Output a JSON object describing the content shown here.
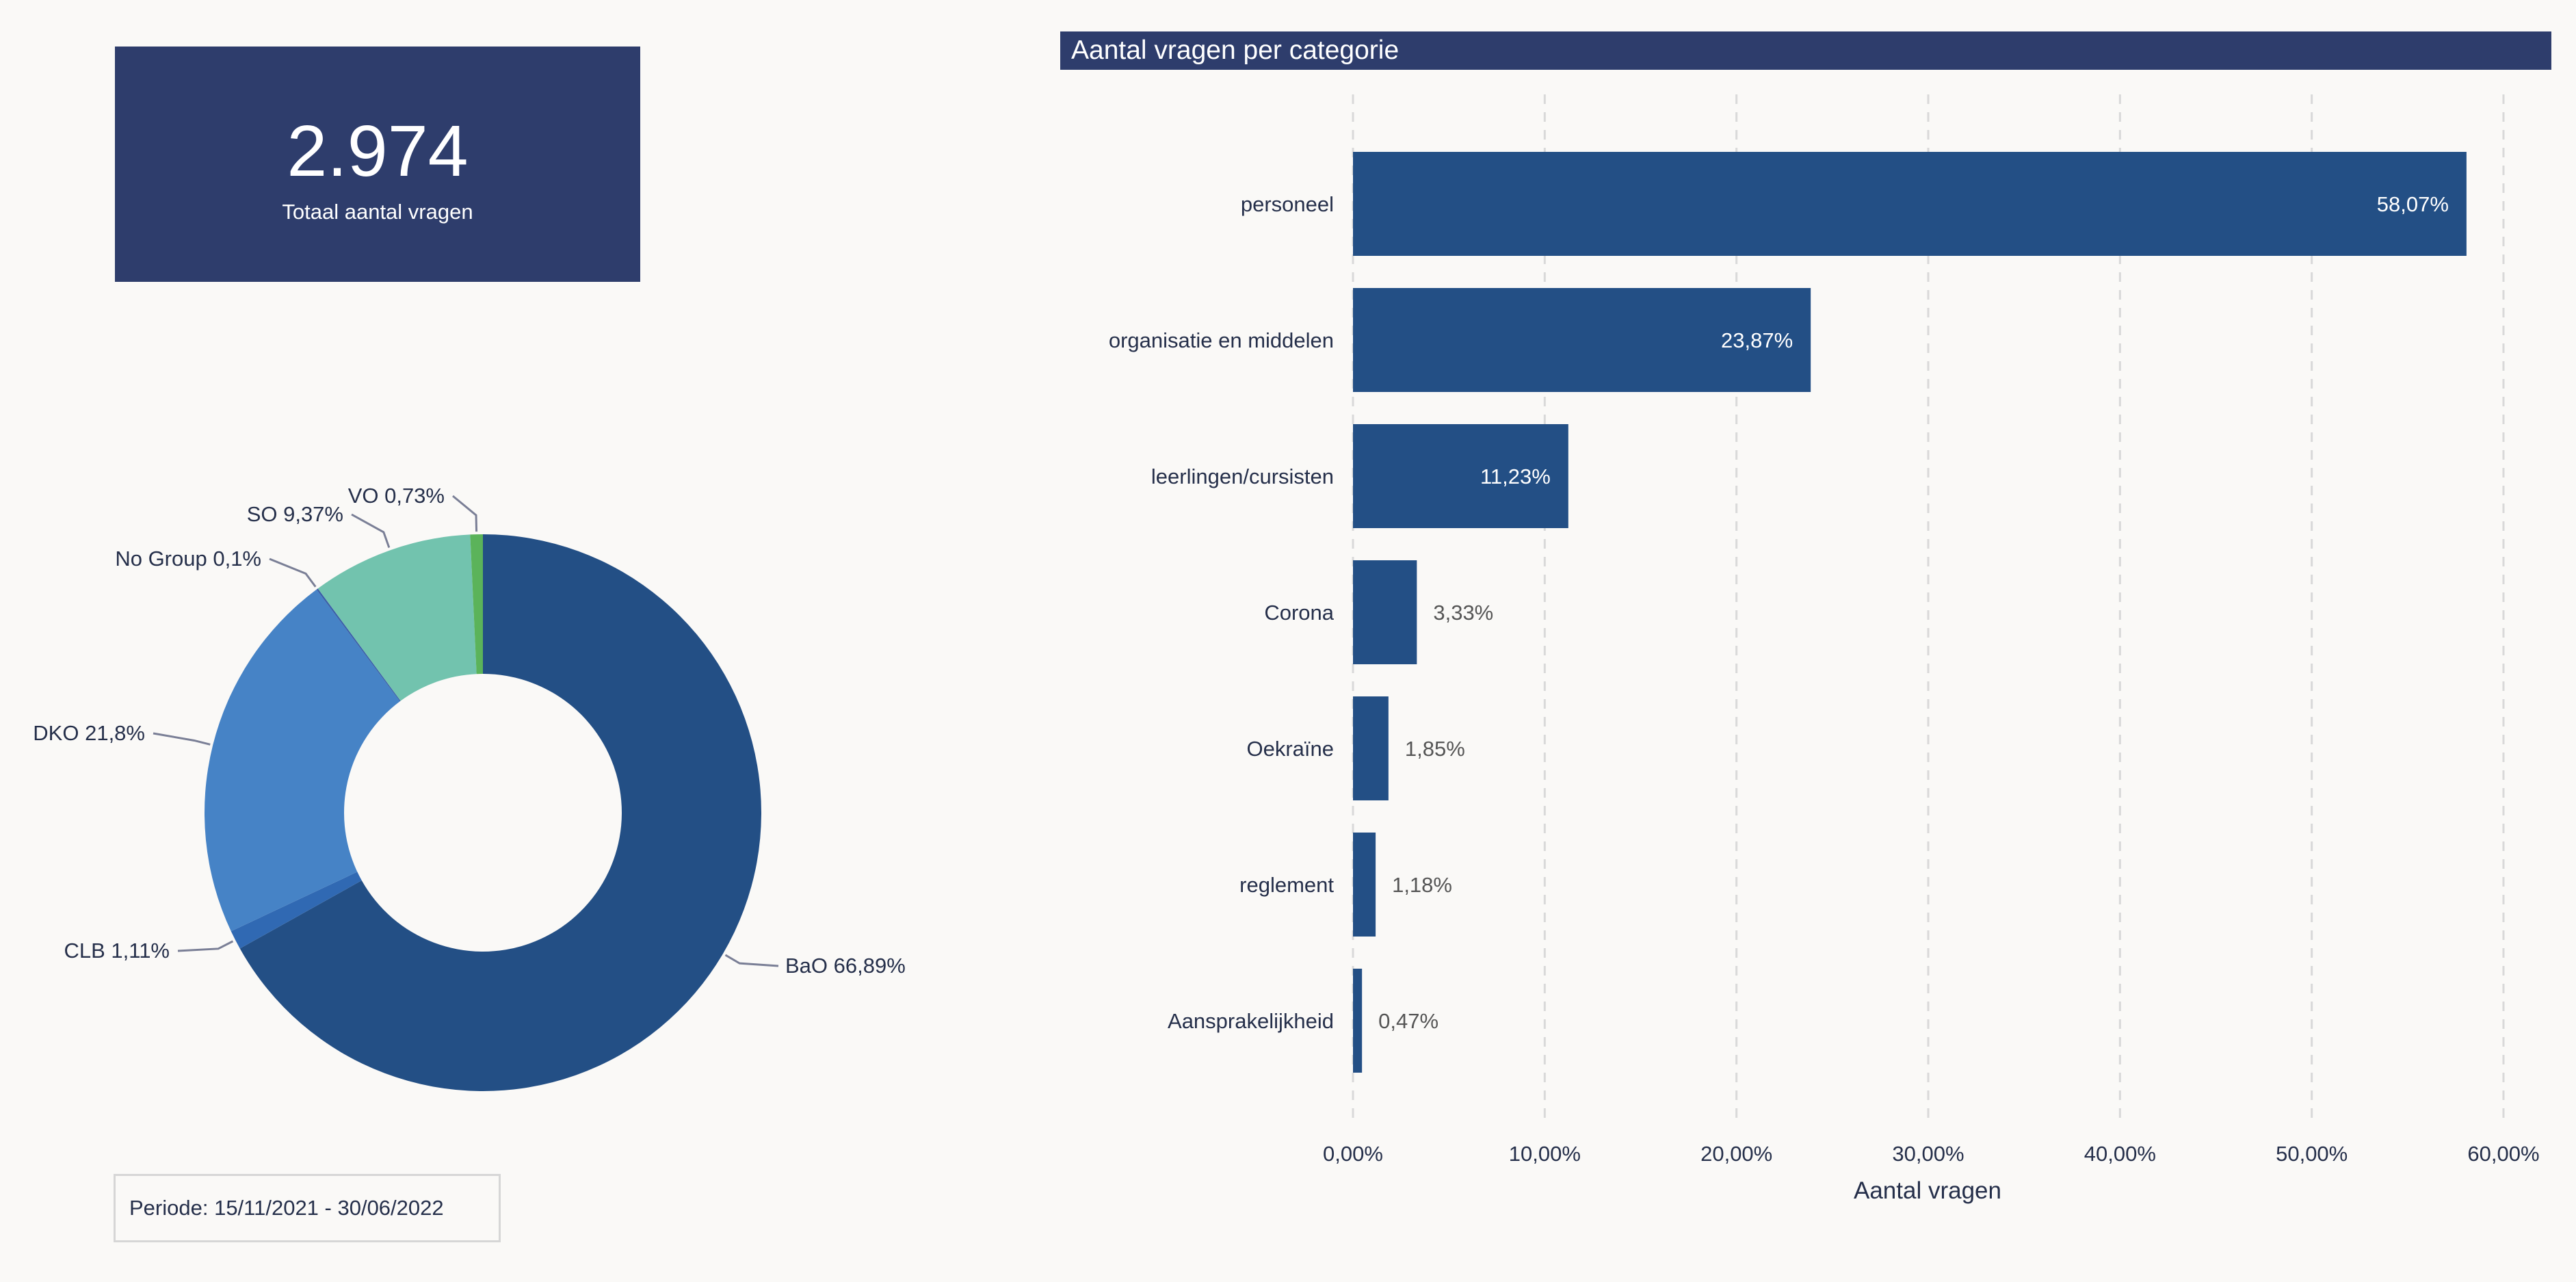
{
  "kpi": {
    "value": "2.974",
    "label": "Totaal aantal vragen"
  },
  "period": {
    "label": "Periode: 15/11/2021 - 30/06/2022"
  },
  "colors": {
    "header_bg": "#2e3d6c",
    "bar": "#234f85",
    "donut": [
      "#234f85",
      "#3069b3",
      "#4683c6",
      "#3a5fa8",
      "#72c3ae",
      "#5bb35a"
    ]
  },
  "chart_data": [
    {
      "type": "pie",
      "title": "",
      "categories": [
        "BaO",
        "CLB",
        "DKO",
        "No Group",
        "SO",
        "VO"
      ],
      "values": [
        66.89,
        1.11,
        21.8,
        0.1,
        9.37,
        0.73
      ],
      "labels": [
        "BaO 66,89%",
        "CLB 1,11%",
        "DKO 21,8%",
        "No Group 0,1%",
        "SO 9,37%",
        "VO 0,73%"
      ],
      "donut": true
    },
    {
      "type": "bar",
      "orientation": "horizontal",
      "title": "Aantal vragen per categorie",
      "xlabel": "Aantal vragen",
      "ylabel": "",
      "categories": [
        "personeel",
        "organisatie en middelen",
        "leerlingen/cursisten",
        "Corona",
        "Oekraïne",
        "reglement",
        "Aansprakelijkheid"
      ],
      "values": [
        58.07,
        23.87,
        11.23,
        3.33,
        1.85,
        1.18,
        0.47
      ],
      "data_labels": [
        "58,07%",
        "23,87%",
        "11,23%",
        "3,33%",
        "1,85%",
        "1,18%",
        "0,47%"
      ],
      "xlim": [
        0,
        60
      ],
      "xticks": [
        "0,00%",
        "10,00%",
        "20,00%",
        "30,00%",
        "40,00%",
        "50,00%",
        "60,00%"
      ],
      "grid": "vertical dashed"
    }
  ]
}
